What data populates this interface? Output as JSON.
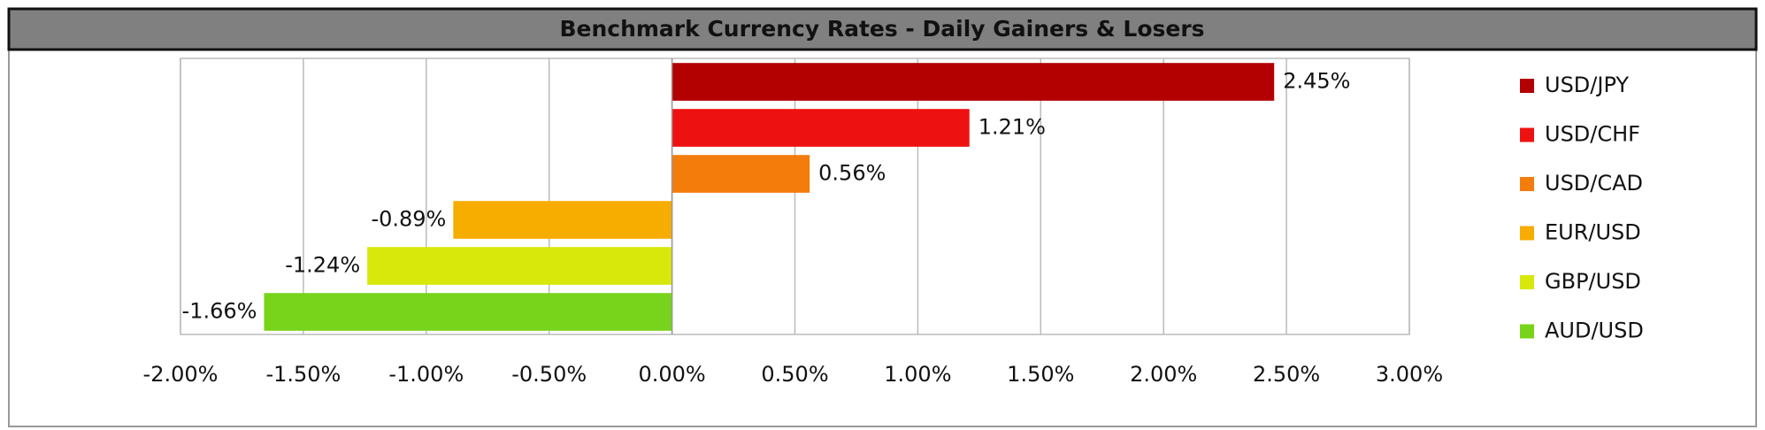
{
  "chart_data": {
    "type": "bar",
    "orientation": "horizontal",
    "title": "Benchmark Currency Rates - Daily Gainers & Losers",
    "series": [
      {
        "name": "USD/JPY",
        "color": "#b30000",
        "values": [
          2.45
        ],
        "value_labels": [
          "2.45%"
        ]
      },
      {
        "name": "USD/CHF",
        "color": "#ee1111",
        "values": [
          1.21
        ],
        "value_labels": [
          "1.21%"
        ]
      },
      {
        "name": "USD/CAD",
        "color": "#f47c0a",
        "values": [
          0.56
        ],
        "value_labels": [
          "0.56%"
        ]
      },
      {
        "name": "EUR/USD",
        "color": "#f7ac00",
        "values": [
          -0.89
        ],
        "value_labels": [
          "-0.89%"
        ]
      },
      {
        "name": "GBP/USD",
        "color": "#d8e80a",
        "values": [
          -1.24
        ],
        "value_labels": [
          "-1.24%"
        ]
      },
      {
        "name": "AUD/USD",
        "color": "#78d41a",
        "values": [
          -1.66
        ],
        "value_labels": [
          "-1.66%"
        ]
      }
    ],
    "xlim": [
      -2,
      3
    ],
    "xticks": [
      {
        "value": -2,
        "label": "-2.00%"
      },
      {
        "value": -1.5,
        "label": "-1.50%"
      },
      {
        "value": -1,
        "label": "-1.00%"
      },
      {
        "value": -0.5,
        "label": "-0.50%"
      },
      {
        "value": 0,
        "label": "0.00%"
      },
      {
        "value": 0.5,
        "label": "0.50%"
      },
      {
        "value": 1,
        "label": "1.00%"
      },
      {
        "value": 1.5,
        "label": "1.50%"
      },
      {
        "value": 2,
        "label": "2.00%"
      },
      {
        "value": 2.5,
        "label": "2.50%"
      },
      {
        "value": 3,
        "label": "3.00%"
      }
    ],
    "grid": true,
    "legend": "right"
  }
}
